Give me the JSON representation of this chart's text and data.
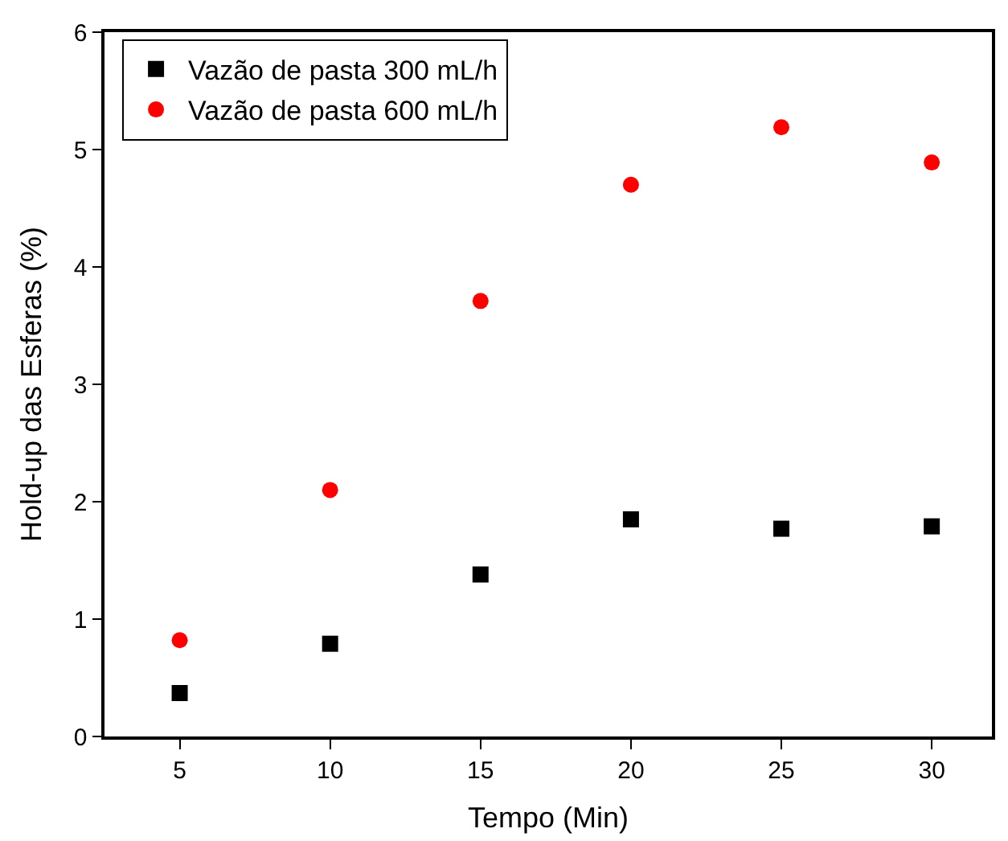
{
  "chart_data": {
    "type": "scatter",
    "xlabel": "Tempo (Min)",
    "ylabel": "Hold-up das Esferas (%)",
    "x": [
      5,
      10,
      15,
      20,
      25,
      30
    ],
    "series": [
      {
        "name": "Vazão de pasta 300 mL/h",
        "color": "#000000",
        "marker": "square",
        "values": [
          0.37,
          0.79,
          1.38,
          1.85,
          1.77,
          1.79
        ]
      },
      {
        "name": "Vazão de pasta 600 mL/h",
        "color": "#ff0000",
        "marker": "circle",
        "values": [
          0.82,
          2.1,
          3.71,
          4.7,
          5.19,
          4.89
        ]
      }
    ],
    "xlim": [
      2.5,
      32
    ],
    "xticks": [
      5,
      10,
      15,
      20,
      25,
      30
    ],
    "ylim": [
      0,
      6
    ],
    "yticks": [
      0,
      1,
      2,
      3,
      4,
      5,
      6
    ],
    "legend": "top left"
  }
}
